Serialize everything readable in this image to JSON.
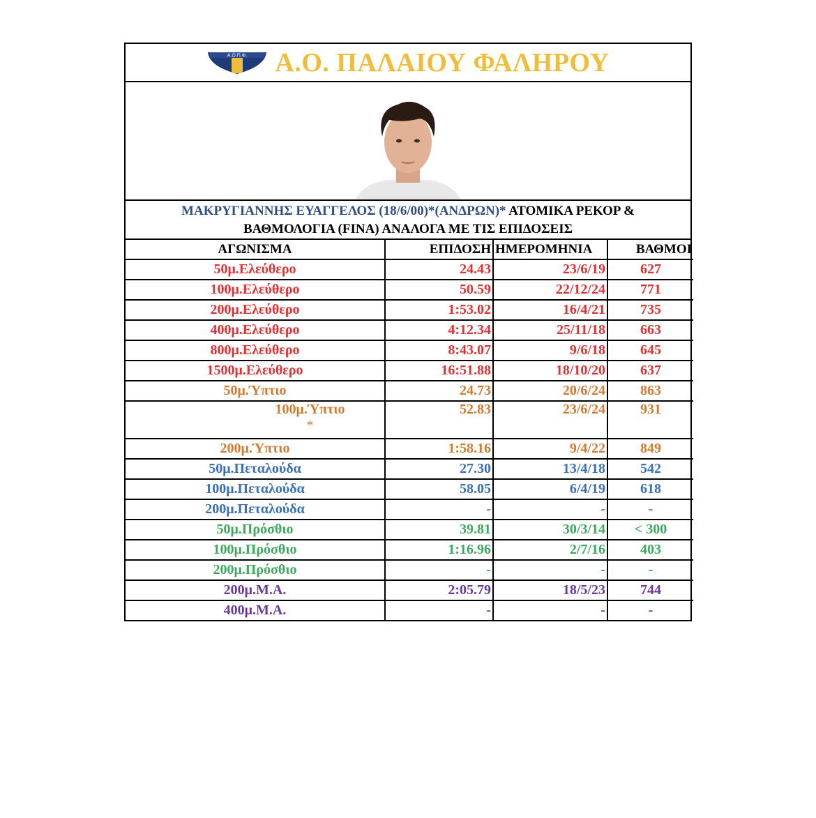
{
  "header": {
    "club_name": "Α.Ο. ΠΑΛΑΙΟΥ ΦΑΛΗΡΟΥ",
    "logo_text": "Α.Ο.Π.Φ."
  },
  "heading": {
    "athlete": "ΜΑΚΡΥΓΙΑΝΝΗΣ ΕΥΑΓΓΕΛΟΣ (18/6/00)*(ΑΝΔΡΩΝ)*",
    "line1_rest": " ΑΤΟΜΙΚΑ ΡΕΚΟΡ &",
    "line2": "ΒΑΘΜΟΛΟΓΙΑ (FINA) ΑΝΑΛΟΓΑ ΜΕ ΤΙΣ ΕΠΙΔΟΣΕΙΣ"
  },
  "columns": [
    "ΑΓΩΝΙΣΜΑ",
    "ΕΠΙΔΟΣΗ",
    "ΗΜΕΡΟΜΗΝΙΑ",
    "ΒΑΘΜΟΙ"
  ],
  "colors": {
    "freestyle": "#e03232",
    "backstroke": "#d27a30",
    "butterfly": "#3a70b6",
    "breaststroke": "#3fa85f",
    "medley": "#6a3898",
    "club": "#f0bd3a"
  },
  "rows": [
    {
      "event": "50μ.Ελεύθερο",
      "time": "24.43",
      "date": "23/6/19",
      "points": "627",
      "style": "red"
    },
    {
      "event": "100μ.Ελεύθερο",
      "time": "50.59",
      "date": "22/12/24",
      "points": "771",
      "style": "red"
    },
    {
      "event": "200μ.Ελεύθερο",
      "time": "1:53.02",
      "date": "16/4/21",
      "points": "735",
      "style": "red"
    },
    {
      "event": "400μ.Ελεύθερο",
      "time": "4:12.34",
      "date": "25/11/18",
      "points": "663",
      "style": "red"
    },
    {
      "event": "800μ.Ελεύθερο",
      "time": "8:43.07",
      "date": "9/6/18",
      "points": "645",
      "style": "red"
    },
    {
      "event": "1500μ.Ελεύθερο",
      "time": "16:51.88",
      "date": "18/10/20",
      "points": "637",
      "style": "red"
    },
    {
      "event": "50μ.Ύπτιο",
      "time": "24.73",
      "date": "20/6/24",
      "points": "863",
      "style": "orange"
    },
    {
      "event": "100μ.Ύπτιο",
      "note": "*",
      "time": "52.83",
      "date": "23/6/24",
      "points": "931",
      "style": "orange"
    },
    {
      "event": "200μ.Ύπτιο",
      "time": "1:58.16",
      "date": "9/4/22",
      "points": "849",
      "style": "orange"
    },
    {
      "event": "50μ.Πεταλούδα",
      "time": "27.30",
      "date": "13/4/18",
      "points": "542",
      "style": "blue"
    },
    {
      "event": "100μ.Πεταλούδα",
      "time": "58.05",
      "date": "6/4/19",
      "points": "618",
      "style": "blue"
    },
    {
      "event": "200μ.Πεταλούδα",
      "time": "-",
      "date": "-",
      "points": "-",
      "style": "blue"
    },
    {
      "event": "50μ.Πρόσθιο",
      "time": "39.81",
      "date": "30/3/14",
      "points": "< 300",
      "style": "green"
    },
    {
      "event": "100μ.Πρόσθιο",
      "time": "1:16.96",
      "date": "2/7/16",
      "points": "403",
      "style": "green"
    },
    {
      "event": "200μ.Πρόσθιο",
      "time": "-",
      "date": "-",
      "points": "-",
      "style": "green"
    },
    {
      "event": "200μ.Μ.Α.",
      "time": "2:05.79",
      "date": "18/5/23",
      "points": "744",
      "style": "purple"
    },
    {
      "event": "400μ.Μ.Α.",
      "time": "-",
      "date": "-",
      "points": "-",
      "style": "purple"
    }
  ]
}
